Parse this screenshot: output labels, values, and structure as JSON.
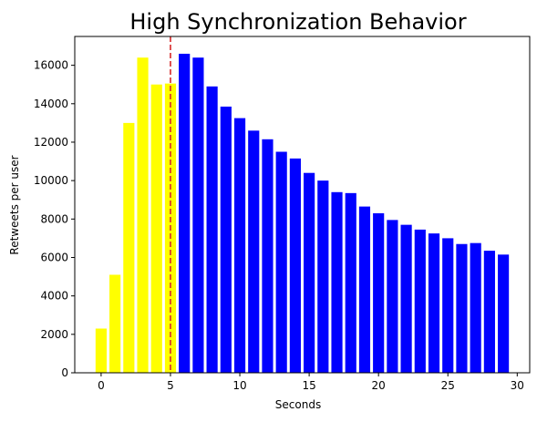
{
  "chart_data": {
    "type": "bar",
    "title": "High Synchronization Behavior",
    "xlabel": "Seconds",
    "ylabel": "Retweets per user",
    "x": [
      0,
      1,
      2,
      3,
      4,
      5,
      6,
      7,
      8,
      9,
      10,
      11,
      12,
      13,
      14,
      15,
      16,
      17,
      18,
      19,
      20,
      21,
      22,
      23,
      24,
      25,
      26,
      27,
      28,
      29
    ],
    "values": [
      2300,
      5100,
      13000,
      16400,
      15000,
      15050,
      16600,
      16400,
      14900,
      13850,
      13250,
      12600,
      12150,
      11500,
      11150,
      10400,
      10000,
      9400,
      9350,
      8650,
      8300,
      7950,
      7700,
      7450,
      7250,
      7000,
      6700,
      6750,
      6350,
      6150
    ],
    "colors": [
      "#ffff00",
      "#ffff00",
      "#ffff00",
      "#ffff00",
      "#ffff00",
      "#ffff00",
      "#0000ff",
      "#0000ff",
      "#0000ff",
      "#0000ff",
      "#0000ff",
      "#0000ff",
      "#0000ff",
      "#0000ff",
      "#0000ff",
      "#0000ff",
      "#0000ff",
      "#0000ff",
      "#0000ff",
      "#0000ff",
      "#0000ff",
      "#0000ff",
      "#0000ff",
      "#0000ff",
      "#0000ff",
      "#0000ff",
      "#0000ff",
      "#0000ff",
      "#0000ff",
      "#0000ff"
    ],
    "threshold_line": {
      "x": 5,
      "color": "#d62728",
      "style": "dashed"
    },
    "xlim": [
      -1.9,
      30.9
    ],
    "ylim": [
      0,
      17500
    ],
    "xticks": [
      0,
      5,
      10,
      15,
      20,
      25,
      30
    ],
    "xtick_labels": [
      "0",
      "5",
      "10",
      "15",
      "20",
      "25",
      "30"
    ],
    "yticks": [
      0,
      2000,
      4000,
      6000,
      8000,
      10000,
      12000,
      14000,
      16000
    ],
    "ytick_labels": [
      "0",
      "2000",
      "4000",
      "6000",
      "8000",
      "10000",
      "12000",
      "14000",
      "16000"
    ],
    "grid": false,
    "legend": false
  }
}
